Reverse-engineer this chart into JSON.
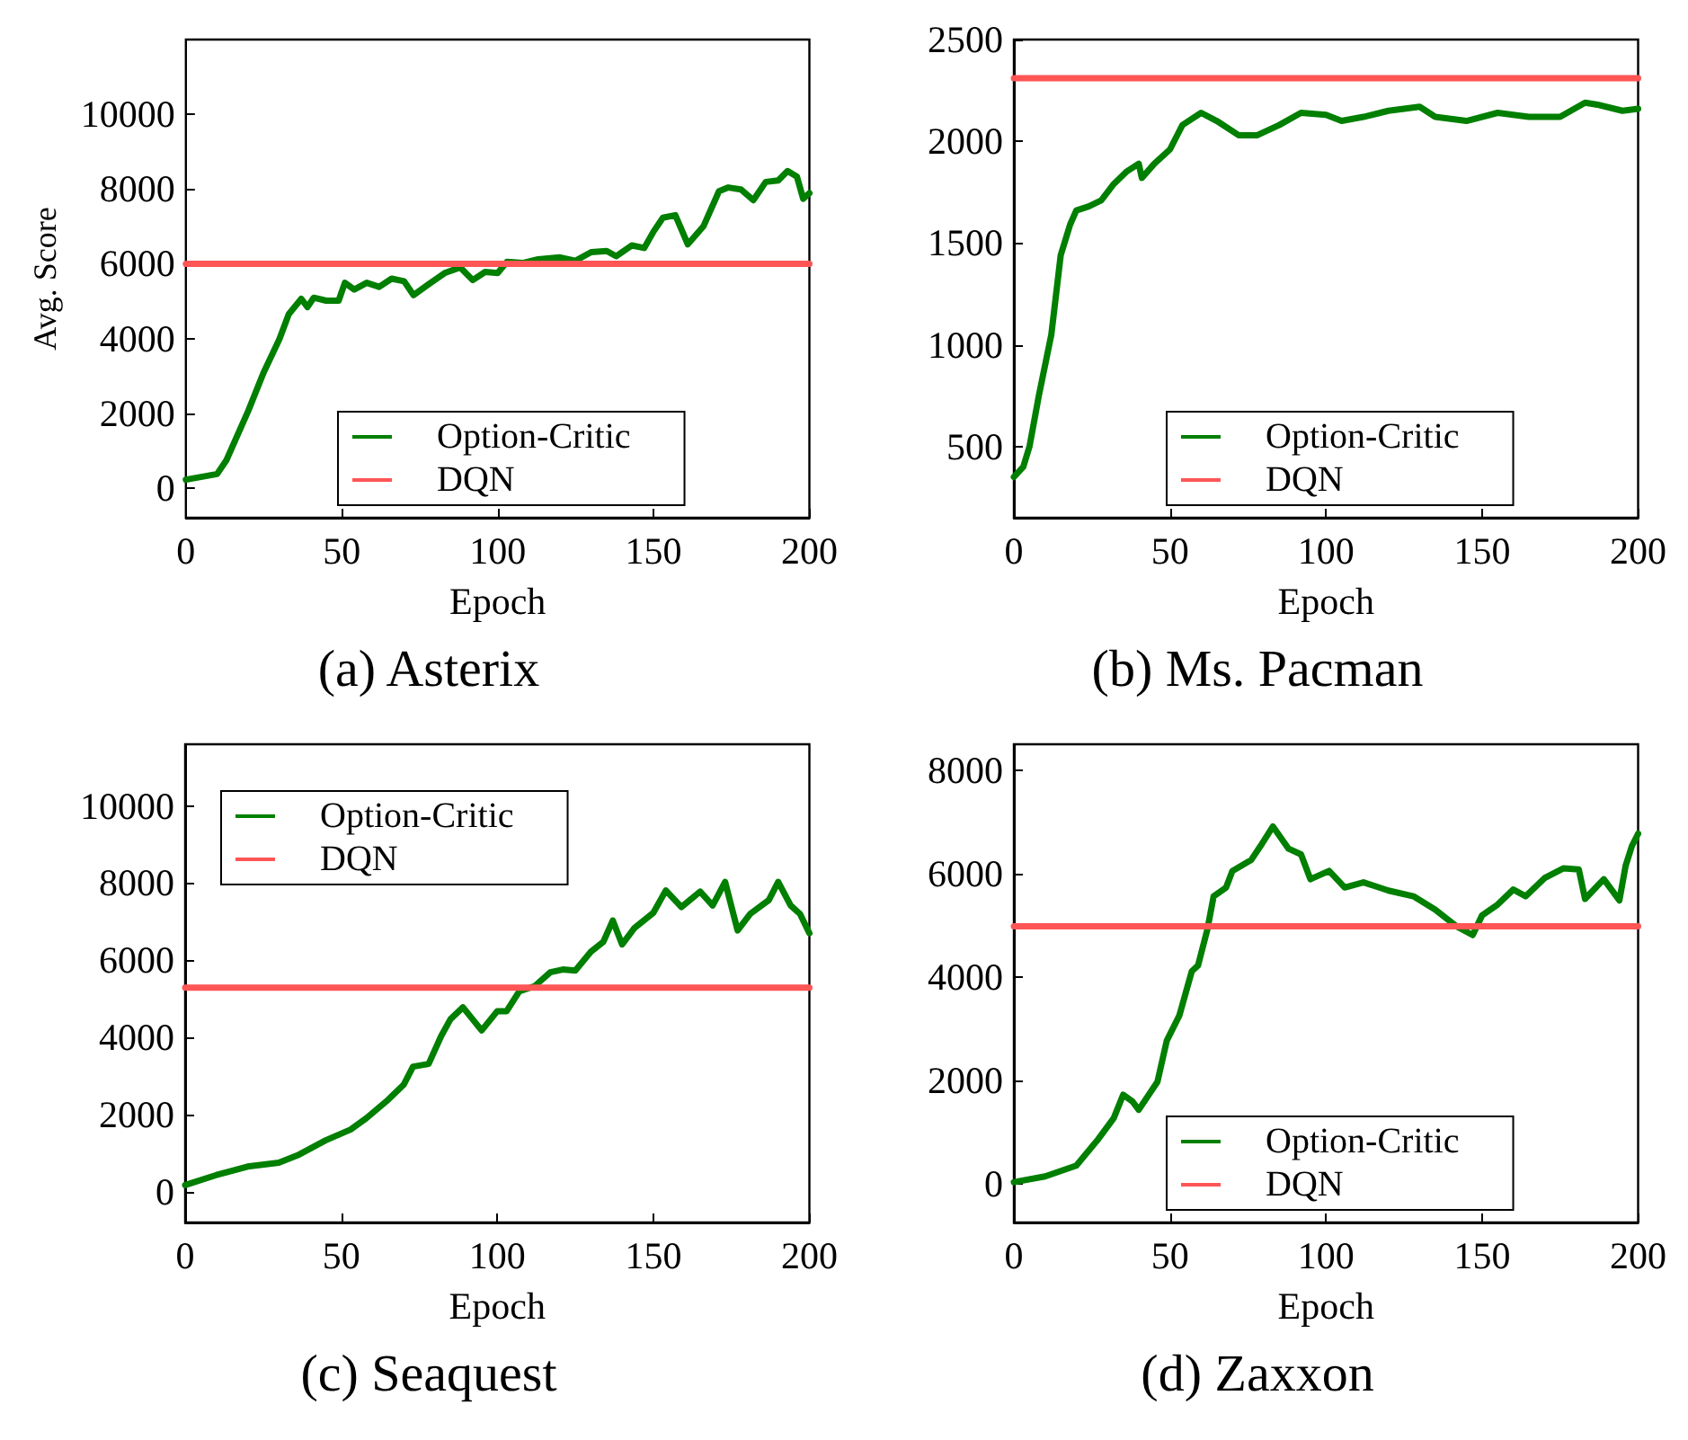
{
  "chart_data": [
    {
      "type": "line",
      "title": "(a) Asterix",
      "xlabel": "Epoch",
      "ylabel": "Avg. Score",
      "xlim": [
        0,
        200
      ],
      "xticks": [
        0,
        50,
        100,
        150,
        200
      ],
      "ylim": [
        -800,
        12000
      ],
      "yticks": [
        0,
        2000,
        4000,
        6000,
        8000,
        10000
      ],
      "grid": false,
      "legend": "bottom",
      "marker": "none",
      "line_style": "solid",
      "series": [
        {
          "name": "Option-Critic",
          "color": "#007f00",
          "x": [
            0,
            10,
            13,
            20,
            25,
            30,
            33,
            37,
            39,
            41,
            45,
            49,
            51,
            54,
            58,
            62,
            66,
            70,
            73,
            78,
            83,
            88,
            92,
            96,
            100,
            103,
            108,
            113,
            120,
            125,
            130,
            135,
            138,
            143,
            147,
            150,
            153,
            157,
            161,
            166,
            171,
            174,
            178,
            182,
            186,
            190,
            193,
            196,
            198,
            200
          ],
          "values": [
            220,
            370,
            740,
            2060,
            3100,
            3980,
            4650,
            5060,
            4840,
            5090,
            5010,
            5010,
            5490,
            5310,
            5490,
            5380,
            5600,
            5530,
            5160,
            5460,
            5750,
            5900,
            5560,
            5780,
            5750,
            6050,
            6020,
            6120,
            6170,
            6080,
            6310,
            6340,
            6200,
            6490,
            6420,
            6860,
            7230,
            7300,
            6520,
            7000,
            7940,
            8040,
            7990,
            7700,
            8190,
            8230,
            8480,
            8330,
            7740,
            7890
          ]
        },
        {
          "name": "DQN",
          "color": "#ff5555",
          "x": [
            0,
            200
          ],
          "values": [
            6000,
            6000
          ]
        }
      ]
    },
    {
      "type": "line",
      "title": "(b) Ms. Pacman",
      "xlabel": "Epoch",
      "xlim": [
        0,
        200
      ],
      "xticks": [
        0,
        50,
        100,
        150,
        200
      ],
      "ylim": [
        150,
        2500
      ],
      "yticks": [
        500,
        1000,
        1500,
        2000,
        2500
      ],
      "grid": false,
      "legend": "bottom",
      "marker": "none",
      "line_style": "solid",
      "series": [
        {
          "name": "Option-Critic",
          "color": "#007f00",
          "x": [
            0,
            3,
            5,
            8,
            12,
            15,
            18,
            20,
            24,
            28,
            32,
            36,
            40,
            41,
            45,
            50,
            54,
            60,
            65,
            72,
            78,
            85,
            92,
            100,
            105,
            112,
            120,
            130,
            135,
            145,
            155,
            165,
            175,
            183,
            187,
            195,
            200
          ],
          "values": [
            350,
            400,
            500,
            750,
            1050,
            1440,
            1590,
            1660,
            1680,
            1710,
            1790,
            1850,
            1890,
            1820,
            1890,
            1960,
            2080,
            2140,
            2100,
            2030,
            2030,
            2080,
            2140,
            2130,
            2100,
            2120,
            2150,
            2170,
            2120,
            2100,
            2140,
            2120,
            2120,
            2190,
            2180,
            2150,
            2160
          ]
        },
        {
          "name": "DQN",
          "color": "#ff5555",
          "x": [
            0,
            200
          ],
          "values": [
            2310,
            2310
          ]
        }
      ]
    },
    {
      "type": "line",
      "title": "(c) Seaquest",
      "xlabel": "Epoch",
      "xlim": [
        0,
        200
      ],
      "xticks": [
        0,
        50,
        100,
        150,
        200
      ],
      "ylim": [
        -800,
        11600
      ],
      "yticks": [
        0,
        2000,
        4000,
        6000,
        8000,
        10000
      ],
      "grid": false,
      "legend": "top left",
      "marker": "none",
      "line_style": "solid",
      "series": [
        {
          "name": "Option-Critic",
          "color": "#007f00",
          "x": [
            0,
            10,
            20,
            30,
            36,
            45,
            53,
            58,
            65,
            70,
            73,
            78,
            82,
            85,
            89,
            95,
            100,
            103,
            107,
            112,
            117,
            121,
            125,
            130,
            134,
            137,
            140,
            144,
            150,
            154,
            159,
            165,
            169,
            173,
            177,
            181,
            187,
            190,
            194,
            197,
            200
          ],
          "values": [
            170,
            430,
            650,
            750,
            940,
            1330,
            1610,
            1900,
            2380,
            2770,
            3240,
            3310,
            4030,
            4470,
            4780,
            4180,
            4680,
            4680,
            5190,
            5330,
            5690,
            5760,
            5730,
            6220,
            6480,
            7030,
            6410,
            6840,
            7230,
            7810,
            7380,
            7780,
            7420,
            8030,
            6770,
            7200,
            7560,
            8030,
            7420,
            7200,
            6700
          ]
        },
        {
          "name": "DQN",
          "color": "#ff5555",
          "x": [
            0,
            200
          ],
          "values": [
            5290,
            5290
          ]
        }
      ]
    },
    {
      "type": "line",
      "title": "(d) Zaxxon",
      "xlabel": "Epoch",
      "xlim": [
        0,
        200
      ],
      "xticks": [
        0,
        50,
        100,
        150,
        200
      ],
      "ylim": [
        -750,
        8500
      ],
      "yticks": [
        0,
        2000,
        4000,
        6000,
        8000
      ],
      "grid": false,
      "legend": "bottom",
      "marker": "none",
      "line_style": "solid",
      "series": [
        {
          "name": "Option-Critic",
          "color": "#007f00",
          "x": [
            0,
            10,
            20,
            27,
            32,
            35,
            38,
            40,
            46,
            49,
            53,
            57,
            59,
            62,
            64,
            68,
            70,
            76,
            79,
            83,
            88,
            92,
            95,
            101,
            106,
            112,
            120,
            128,
            135,
            142,
            147,
            150,
            155,
            160,
            164,
            170,
            176,
            181,
            183,
            189,
            194,
            196,
            198,
            200
          ],
          "values": [
            30,
            140,
            350,
            860,
            1270,
            1720,
            1590,
            1430,
            1970,
            2770,
            3250,
            4110,
            4220,
            4920,
            5560,
            5730,
            6050,
            6260,
            6530,
            6910,
            6480,
            6370,
            5890,
            6050,
            5730,
            5830,
            5670,
            5560,
            5300,
            4970,
            4810,
            5190,
            5400,
            5690,
            5560,
            5910,
            6100,
            6080,
            5510,
            5890,
            5480,
            6150,
            6530,
            6770
          ]
        },
        {
          "name": "DQN",
          "color": "#ff5555",
          "x": [
            0,
            200
          ],
          "values": [
            4980,
            4980
          ]
        }
      ]
    }
  ]
}
